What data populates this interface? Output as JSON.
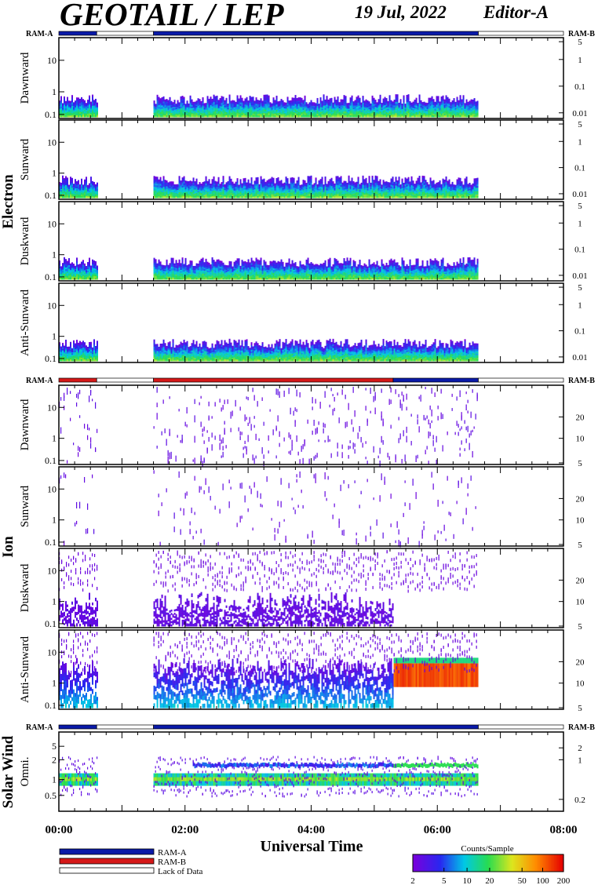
{
  "header": {
    "title": "GEOTAIL / LEP",
    "date": "19 Jul, 2022",
    "editor": "Editor-A"
  },
  "legend": {
    "ram_a": "RAM-A",
    "ram_b": "RAM-B",
    "lack": "Lack of Data",
    "colorbar_title": "Counts/Sample",
    "colorbar_ticks": [
      "2",
      "5",
      "10",
      "20",
      "50",
      "100",
      "200"
    ]
  },
  "colors": {
    "ram_a": "#0a1aa8",
    "ram_b": "#d51818",
    "lack": "#ffffff"
  },
  "chart_data": {
    "type": "heatmap",
    "xlabel": "Universal Time",
    "x_ticks": [
      "00:00",
      "02:00",
      "04:00",
      "06:00",
      "08:00"
    ],
    "xlim_hours": [
      0,
      8
    ],
    "data_intervals_hours": [
      [
        0.0,
        0.6
      ],
      [
        1.5,
        6.65
      ]
    ],
    "groups": [
      {
        "name": "Electron",
        "status_bar": {
          "left_label": "RAM-A",
          "right_label": "RAM-B",
          "segments": [
            {
              "start": 0.0,
              "end": 0.6,
              "mode": "ram_a"
            },
            {
              "start": 0.6,
              "end": 1.5,
              "mode": "lack"
            },
            {
              "start": 1.5,
              "end": 6.65,
              "mode": "ram_a"
            },
            {
              "start": 6.65,
              "end": 8.0,
              "mode": "lack"
            }
          ]
        },
        "panels": [
          {
            "label": "Dawnward",
            "left_ticks": [
              "10",
              "1",
              "0.1"
            ],
            "right_ticks": [
              "5",
              "1",
              "0.1",
              "0.01"
            ]
          },
          {
            "label": "Sunward",
            "left_ticks": [
              "10",
              "1",
              "0.1"
            ],
            "right_ticks": [
              "5",
              "1",
              "0.1",
              "0.01"
            ]
          },
          {
            "label": "Duskward",
            "left_ticks": [
              "10",
              "1",
              "0.1"
            ],
            "right_ticks": [
              "5",
              "1",
              "0.1",
              "0.01"
            ]
          },
          {
            "label": "Anti-Sunward",
            "left_ticks": [
              "10",
              "1",
              "0.1"
            ],
            "right_ticks": [
              "5",
              "1",
              "0.1",
              "0.01"
            ]
          }
        ]
      },
      {
        "name": "Ion",
        "status_bar": {
          "left_label": "RAM-A",
          "right_label": "RAM-B",
          "segments": [
            {
              "start": 0.0,
              "end": 0.6,
              "mode": "ram_b"
            },
            {
              "start": 0.6,
              "end": 1.5,
              "mode": "lack"
            },
            {
              "start": 1.5,
              "end": 5.3,
              "mode": "ram_b"
            },
            {
              "start": 5.3,
              "end": 6.65,
              "mode": "ram_a"
            },
            {
              "start": 6.65,
              "end": 8.0,
              "mode": "lack"
            }
          ]
        },
        "panels": [
          {
            "label": "Dawnward",
            "left_ticks": [
              "10",
              "1",
              "0.1"
            ],
            "right_ticks": [
              "20",
              "10",
              "5"
            ]
          },
          {
            "label": "Sunward",
            "left_ticks": [
              "10",
              "1",
              "0.1"
            ],
            "right_ticks": [
              "20",
              "10",
              "5"
            ]
          },
          {
            "label": "Duskward",
            "left_ticks": [
              "10",
              "1",
              "0.1"
            ],
            "right_ticks": [
              "20",
              "10",
              "5"
            ]
          },
          {
            "label": "Anti-Sunward",
            "left_ticks": [
              "10",
              "1",
              "0.1"
            ],
            "right_ticks": [
              "20",
              "10",
              "5"
            ]
          }
        ]
      },
      {
        "name": "Solar Wind",
        "status_bar": {
          "left_label": "RAM-A",
          "right_label": "RAM-B",
          "segments": [
            {
              "start": 0.0,
              "end": 0.6,
              "mode": "ram_a"
            },
            {
              "start": 0.6,
              "end": 1.5,
              "mode": "lack"
            },
            {
              "start": 1.5,
              "end": 6.65,
              "mode": "ram_a"
            },
            {
              "start": 6.65,
              "end": 8.0,
              "mode": "lack"
            }
          ]
        },
        "panels": [
          {
            "label": "Omni.",
            "left_ticks": [
              "5",
              "2",
              "1",
              "0.5"
            ],
            "right_ticks": [
              "2",
              "1",
              "0.2"
            ]
          }
        ]
      }
    ]
  }
}
